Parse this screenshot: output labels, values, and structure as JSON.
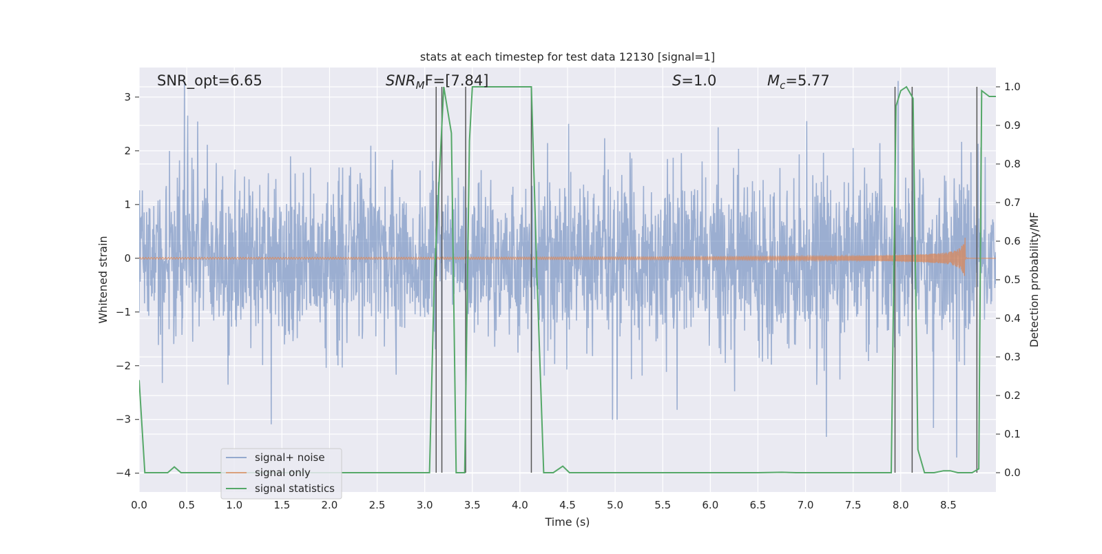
{
  "chart_data": {
    "type": "line",
    "title": "stats at each timestep for test data 12130 [signal=1]",
    "xlabel": "Time (s)",
    "ylabel_left": "Whitened strain",
    "ylabel_right": "Detection probability/MF",
    "xlim": [
      0.0,
      9.0
    ],
    "ylim_left": [
      -4.35,
      3.55
    ],
    "ylim_right": [
      -0.05,
      1.05
    ],
    "x_ticks": [
      "0.0",
      "0.5",
      "1.0",
      "1.5",
      "2.0",
      "2.5",
      "3.0",
      "3.5",
      "4.0",
      "4.5",
      "5.0",
      "5.5",
      "6.0",
      "6.5",
      "7.0",
      "7.5",
      "8.0",
      "8.5"
    ],
    "x_tick_values": [
      0.0,
      0.5,
      1.0,
      1.5,
      2.0,
      2.5,
      3.0,
      3.5,
      4.0,
      4.5,
      5.0,
      5.5,
      6.0,
      6.5,
      7.0,
      7.5,
      8.0,
      8.5
    ],
    "y_left_ticks": [
      "3",
      "2",
      "1",
      "0",
      "−1",
      "−2",
      "−3",
      "−4"
    ],
    "y_left_tick_values": [
      3,
      2,
      1,
      0,
      -1,
      -2,
      -3,
      -4
    ],
    "y_right_ticks": [
      "1.0",
      "0.9",
      "0.8",
      "0.7",
      "0.6",
      "0.5",
      "0.4",
      "0.3",
      "0.2",
      "0.1",
      "0.0"
    ],
    "y_right_tick_values": [
      1.0,
      0.9,
      0.8,
      0.7,
      0.6,
      0.5,
      0.4,
      0.3,
      0.2,
      0.1,
      0.0
    ],
    "grid": true,
    "legend": {
      "placement": "lower-left",
      "entries": [
        "signal+ noise",
        "signal only",
        "signal statistics"
      ]
    },
    "annotations": {
      "snr_opt": "SNR_opt=6.65",
      "snr_mf_prefix": "SNR",
      "snr_mf_sub": "M",
      "snr_mf_suffix": "F=[7.84]",
      "s_prefix": "S",
      "s_suffix": "=1.0",
      "mc_prefix": "M",
      "mc_sub": "c",
      "mc_suffix": "=5.77"
    },
    "series": [
      {
        "name": "signal+ noise",
        "color": "#4c72b0",
        "style": "noise",
        "envelope_typical": 1.3,
        "envelope_extreme": 3.3
      },
      {
        "name": "signal only",
        "color": "#dd8452",
        "style": "chirp",
        "chirp_end_time": 8.68,
        "chirp_peak_amplitude": 0.65
      },
      {
        "name": "signal statistics",
        "color": "#55a868",
        "axis": "right",
        "x": [
          0.0,
          0.06,
          0.12,
          0.2,
          0.3,
          0.37,
          0.44,
          0.55,
          1.0,
          2.0,
          3.0,
          3.05,
          3.1,
          3.2,
          3.28,
          3.33,
          3.37,
          3.42,
          3.47,
          3.5,
          3.6,
          3.8,
          4.0,
          4.12,
          4.18,
          4.25,
          4.35,
          4.45,
          4.52,
          4.6,
          5.0,
          6.0,
          6.5,
          6.75,
          6.9,
          7.5,
          7.9,
          7.95,
          8.0,
          8.06,
          8.13,
          8.18,
          8.25,
          8.35,
          8.45,
          8.52,
          8.6,
          8.75,
          8.82,
          8.85,
          8.93,
          9.0
        ],
        "y": [
          0.24,
          0.0,
          0.0,
          0.0,
          0.0,
          0.015,
          0.0,
          0.0,
          0.0,
          0.0,
          0.0,
          0.0,
          0.5,
          1.0,
          0.88,
          0.0,
          0.0,
          0.0,
          0.86,
          1.0,
          1.0,
          1.0,
          1.0,
          1.0,
          0.5,
          0.0,
          0.0,
          0.017,
          0.0,
          0.0,
          0.0,
          0.0,
          0.0,
          0.001,
          0.0,
          0.0,
          0.0,
          0.95,
          0.99,
          1.0,
          0.97,
          0.06,
          0.0,
          0.0,
          0.005,
          0.005,
          0.0,
          0.0,
          0.01,
          0.99,
          0.975,
          0.975
        ]
      }
    ],
    "vertical_markers": [
      3.12,
      3.18,
      3.43,
      4.12,
      7.94,
      8.12,
      8.8
    ]
  }
}
